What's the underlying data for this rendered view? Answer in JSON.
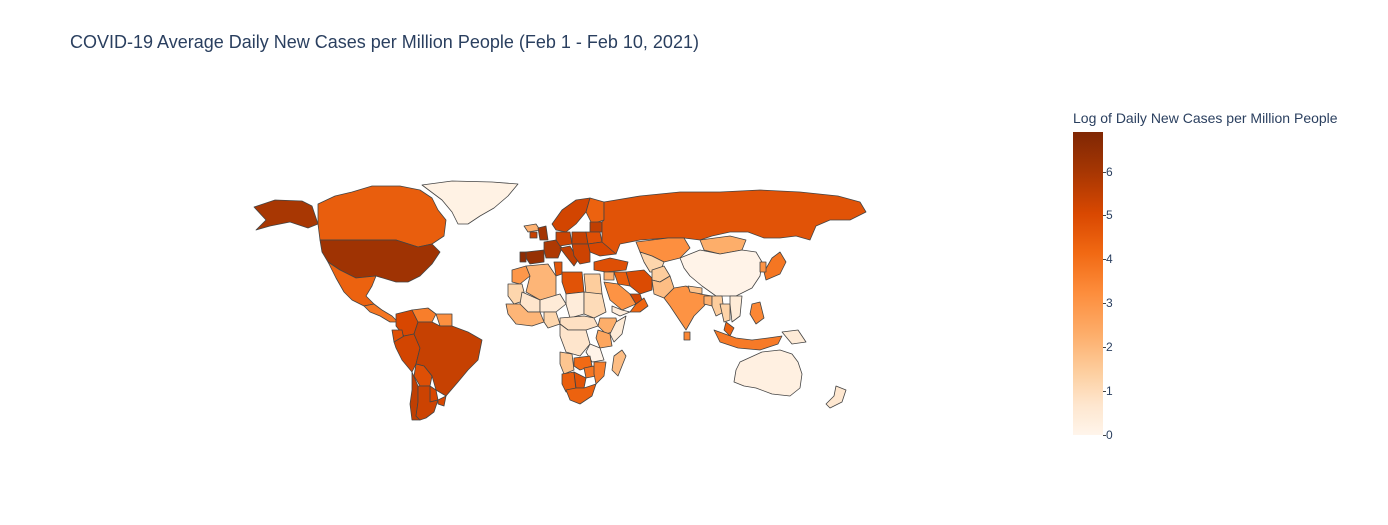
{
  "title": "COVID-19 Average Daily New Cases per Million People (Feb 1 - Feb 10, 2021)",
  "colorbar": {
    "title": "Log of Daily New Cases per Million People",
    "ticks": [
      "6",
      "5",
      "4",
      "3",
      "2",
      "1",
      "0"
    ],
    "range": [
      0,
      6.9
    ],
    "colorscale": [
      "#fff5eb",
      "#fee6ce",
      "#fdd0a2",
      "#fdae6b",
      "#fd8d3c",
      "#f16913",
      "#d94801",
      "#a63603",
      "#7f2704"
    ]
  },
  "map_data": {
    "projection": "equirectangular",
    "value_label": "Log of Daily New Cases per Million People",
    "regions": [
      {
        "name": "Alaska (USA)",
        "value": 6.0
      },
      {
        "name": "Canada",
        "value": 4.6
      },
      {
        "name": "Greenland",
        "value": 0.2
      },
      {
        "name": "United States",
        "value": 6.2
      },
      {
        "name": "Mexico",
        "value": 4.5
      },
      {
        "name": "Central America",
        "value": 4.0
      },
      {
        "name": "Colombia",
        "value": 5.2
      },
      {
        "name": "Venezuela",
        "value": 3.8
      },
      {
        "name": "Guianas",
        "value": 3.4
      },
      {
        "name": "Ecuador",
        "value": 5.0
      },
      {
        "name": "Peru",
        "value": 5.3
      },
      {
        "name": "Brazil",
        "value": 5.5
      },
      {
        "name": "Bolivia",
        "value": 5.0
      },
      {
        "name": "Paraguay",
        "value": 5.2
      },
      {
        "name": "Chile",
        "value": 5.6
      },
      {
        "name": "Argentina",
        "value": 5.4
      },
      {
        "name": "Uruguay",
        "value": 5.2
      },
      {
        "name": "Iceland",
        "value": 2.5
      },
      {
        "name": "Spain",
        "value": 6.4
      },
      {
        "name": "Portugal",
        "value": 6.6
      },
      {
        "name": "France",
        "value": 5.9
      },
      {
        "name": "United Kingdom",
        "value": 6.1
      },
      {
        "name": "Ireland",
        "value": 5.5
      },
      {
        "name": "Germany",
        "value": 5.4
      },
      {
        "name": "Italy",
        "value": 5.6
      },
      {
        "name": "Poland",
        "value": 5.5
      },
      {
        "name": "Scandinavia",
        "value": 5.3
      },
      {
        "name": "Finland",
        "value": 4.5
      },
      {
        "name": "Baltics",
        "value": 5.6
      },
      {
        "name": "Belarus",
        "value": 5.0
      },
      {
        "name": "Ukraine",
        "value": 5.2
      },
      {
        "name": "Balkans",
        "value": 5.4
      },
      {
        "name": "Russia",
        "value": 4.9
      },
      {
        "name": "Turkey",
        "value": 5.0
      },
      {
        "name": "Kazakhstan",
        "value": 3.4
      },
      {
        "name": "Mongolia",
        "value": 2.6
      },
      {
        "name": "China",
        "value": 0.1
      },
      {
        "name": "Japan",
        "value": 4.0
      },
      {
        "name": "South Korea",
        "value": 3.3
      },
      {
        "name": "Iran",
        "value": 5.1
      },
      {
        "name": "Iraq",
        "value": 4.6
      },
      {
        "name": "Syria",
        "value": 2.5
      },
      {
        "name": "Saudi Arabia",
        "value": 3.3
      },
      {
        "name": "Gulf States",
        "value": 5.3
      },
      {
        "name": "Yemen",
        "value": 0.5
      },
      {
        "name": "Oman",
        "value": 4.4
      },
      {
        "name": "Central Asia",
        "value": 1.5
      },
      {
        "name": "Afghanistan",
        "value": 1.8
      },
      {
        "name": "Pakistan",
        "value": 2.2
      },
      {
        "name": "India",
        "value": 3.3
      },
      {
        "name": "Nepal",
        "value": 2.0
      },
      {
        "name": "Bangladesh",
        "value": 2.5
      },
      {
        "name": "Sri Lanka",
        "value": 3.6
      },
      {
        "name": "Myanmar",
        "value": 1.8
      },
      {
        "name": "Thailand",
        "value": 1.6
      },
      {
        "name": "Indochina",
        "value": 0.6
      },
      {
        "name": "Malaysia",
        "value": 4.5
      },
      {
        "name": "Indonesia",
        "value": 3.9
      },
      {
        "name": "Philippines",
        "value": 3.6
      },
      {
        "name": "Papua New Guinea",
        "value": 0.6
      },
      {
        "name": "Australia",
        "value": 0.3
      },
      {
        "name": "New Zealand",
        "value": 0.8
      },
      {
        "name": "Morocco",
        "value": 3.2
      },
      {
        "name": "Algeria",
        "value": 2.4
      },
      {
        "name": "Tunisia",
        "value": 4.8
      },
      {
        "name": "Libya",
        "value": 4.9
      },
      {
        "name": "Egypt",
        "value": 1.8
      },
      {
        "name": "Mauritania",
        "value": 1.5
      },
      {
        "name": "Mali",
        "value": 0.9
      },
      {
        "name": "Niger",
        "value": 0.6
      },
      {
        "name": "Chad",
        "value": 0.5
      },
      {
        "name": "Sudan",
        "value": 1.3
      },
      {
        "name": "West Africa",
        "value": 2.4
      },
      {
        "name": "Nigeria",
        "value": 1.5
      },
      {
        "name": "Ethiopia",
        "value": 2.6
      },
      {
        "name": "Somalia",
        "value": 0.6
      },
      {
        "name": "Kenya",
        "value": 2.8
      },
      {
        "name": "Central Africa",
        "value": 1.1
      },
      {
        "name": "DR Congo",
        "value": 0.9
      },
      {
        "name": "Tanzania",
        "value": 0.1
      },
      {
        "name": "Angola",
        "value": 2.0
      },
      {
        "name": "Zambia",
        "value": 4.3
      },
      {
        "name": "Zimbabwe",
        "value": 4.0
      },
      {
        "name": "Mozambique",
        "value": 3.8
      },
      {
        "name": "Namibia",
        "value": 4.6
      },
      {
        "name": "Botswana",
        "value": 4.9
      },
      {
        "name": "South Africa",
        "value": 4.5
      },
      {
        "name": "Madagascar",
        "value": 2.2
      }
    ]
  }
}
